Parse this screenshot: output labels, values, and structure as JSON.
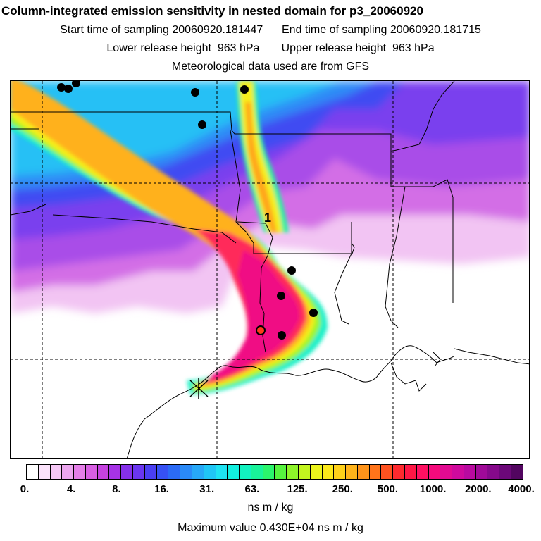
{
  "header": {
    "title": "Column-integrated emission sensitivity in nested domain for p3_20060920",
    "sampling_line": "Start time of sampling 20060920.181447      End time of sampling 20060920.181715",
    "height_line": "Lower release height  963 hPa       Upper release height  963 hPa",
    "met_line": "Meteorological data used are from GFS"
  },
  "map": {
    "plume_label": "1",
    "source_marker": "x-icon"
  },
  "colorbar": {
    "tick_labels": [
      "0.",
      "4.",
      "8.",
      "16.",
      "31.",
      "63.",
      "125.",
      "250.",
      "500.",
      "1000.",
      "2000.",
      "4000."
    ],
    "colors": [
      "#ffffff",
      "#fbe3fb",
      "#f6c8f6",
      "#eca6ef",
      "#e57fe9",
      "#d85fe3",
      "#c542e0",
      "#a633e6",
      "#8530ea",
      "#6a36f0",
      "#4a3ff2",
      "#3651f4",
      "#2b6bf6",
      "#2a8af7",
      "#27a8f7",
      "#20c6f6",
      "#1ee3f2",
      "#12f0e0",
      "#12f2c0",
      "#19f39a",
      "#2bf56c",
      "#56f43f",
      "#8ef42a",
      "#c3f51f",
      "#ecf41c",
      "#fce91a",
      "#ffd11a",
      "#ffb31a",
      "#ff941a",
      "#ff741a",
      "#ff5220",
      "#ff2a2e",
      "#ff1745",
      "#ff1062",
      "#f50b7c",
      "#e20b92",
      "#cf0a9d",
      "#b90aa0",
      "#a00a98",
      "#86098b",
      "#6c0879",
      "#520560"
    ],
    "units": "ns m / kg",
    "max_value": "Maximum value  0.430E+04 ns m / kg"
  }
}
